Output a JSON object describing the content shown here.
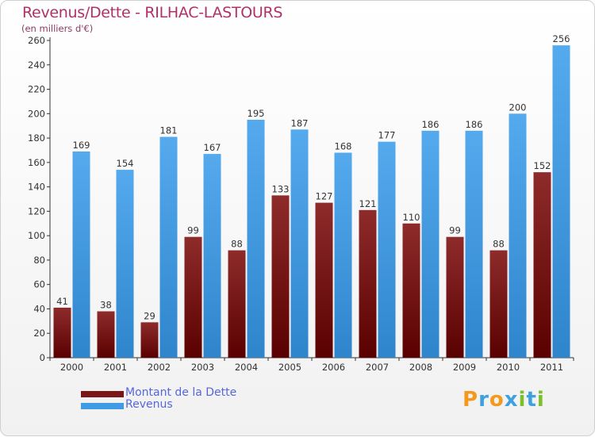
{
  "chart_data": {
    "type": "bar",
    "title": "Revenus/Dette - RILHAC-LASTOURS",
    "subtitle": "(en milliers d'€)",
    "categories": [
      "2000",
      "2001",
      "2002",
      "2003",
      "2004",
      "2005",
      "2006",
      "2007",
      "2008",
      "2009",
      "2010",
      "2011"
    ],
    "series": [
      {
        "name": "Montant de la Dette",
        "color": "#7a1616",
        "values": [
          41,
          38,
          29,
          99,
          88,
          133,
          127,
          121,
          110,
          99,
          88,
          152
        ]
      },
      {
        "name": "Revenus",
        "color": "#3f9be3",
        "values": [
          169,
          154,
          181,
          167,
          195,
          187,
          168,
          177,
          186,
          186,
          200,
          256
        ]
      }
    ],
    "ylim": [
      0,
      260
    ],
    "yticks": [
      0,
      20,
      40,
      60,
      80,
      100,
      120,
      140,
      160,
      180,
      200,
      220,
      240,
      260
    ],
    "grid": false,
    "legend_position": "bottom-left"
  },
  "legend": {
    "debt_label": "Montant de la Dette",
    "revenue_label": "Revenus"
  },
  "logo_text": "Proxiti",
  "colors": {
    "title": "#b0306a",
    "axis": "#333333",
    "debt": "#7a1616",
    "revenue": "#3f9be3"
  }
}
